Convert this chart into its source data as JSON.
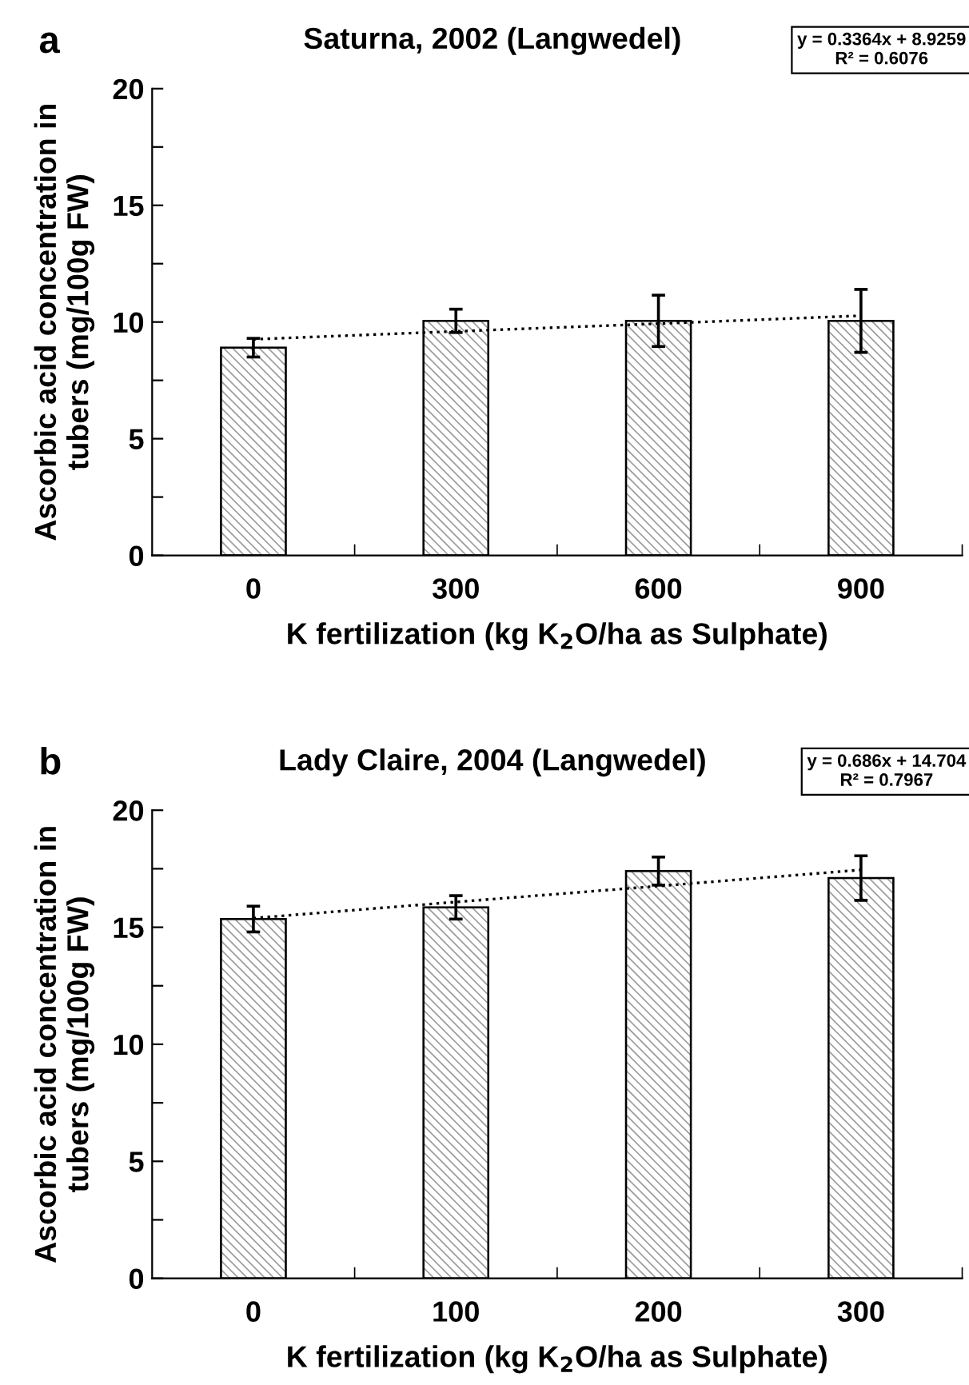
{
  "chart_data": [
    {
      "type": "bar",
      "title": "Saturna, 2002 (Langwedel)",
      "xlabel": "K fertilization (kg K$_{2}$O/ha as Sulphate)",
      "ylabel": "Ascorbic acid concentration in tubers (mg/100g FW)",
      "categories": [
        "0",
        "300",
        "600",
        "900"
      ],
      "series": [
        {
          "color": "#9a9a9a",
          "values": [
            8.9,
            10.05,
            10.05,
            10.05
          ],
          "errors": [
            0.4,
            0.5,
            1.1,
            1.35
          ]
        },
        {
          "type": "line",
          "color": "#000000",
          "line_style": "dotted",
          "x": [
            "0",
            "300",
            "600",
            "900"
          ],
          "values": [
            9.26,
            9.6,
            9.93,
            10.27
          ]
        }
      ],
      "ylim": [
        0,
        20
      ],
      "yticks": [
        0,
        {
          "value": 2.5,
          "label": null
        },
        5,
        {
          "value": 7.5,
          "label": null
        },
        10,
        {
          "value": 12.5,
          "label": null
        },
        15,
        {
          "value": 17.5,
          "label": null
        },
        20
      ],
      "annotations": [
        "a",
        "y = 0.3364x + 8.9259\nR² = 0.6076"
      ]
    },
    {
      "type": "bar",
      "title": "Lady Claire, 2004 (Langwedel)",
      "xlabel": "K fertilization (kg K$_{2}$O/ha as Sulphate)",
      "ylabel": "Ascorbic acid concentration in tubers (mg/100g FW)",
      "categories": [
        "0",
        "100",
        "200",
        "300"
      ],
      "series": [
        {
          "color": "#9a9a9a",
          "values": [
            15.35,
            15.85,
            17.4,
            17.1
          ],
          "errors": [
            0.55,
            0.5,
            0.6,
            0.95
          ]
        },
        {
          "type": "line",
          "color": "#000000",
          "line_style": "dotted",
          "x": [
            "0",
            "100",
            "200",
            "300"
          ],
          "values": [
            15.39,
            16.08,
            16.76,
            17.45
          ]
        }
      ],
      "ylim": [
        0,
        20
      ],
      "yticks": [
        0,
        {
          "value": 2.5,
          "label": null
        },
        5,
        {
          "value": 7.5,
          "label": null
        },
        10,
        {
          "value": 12.5,
          "label": null
        },
        15,
        {
          "value": 17.5,
          "label": null
        },
        20
      ],
      "annotations": [
        "b",
        "y = 0.686x + 14.704\nR² = 0.7967"
      ]
    }
  ]
}
